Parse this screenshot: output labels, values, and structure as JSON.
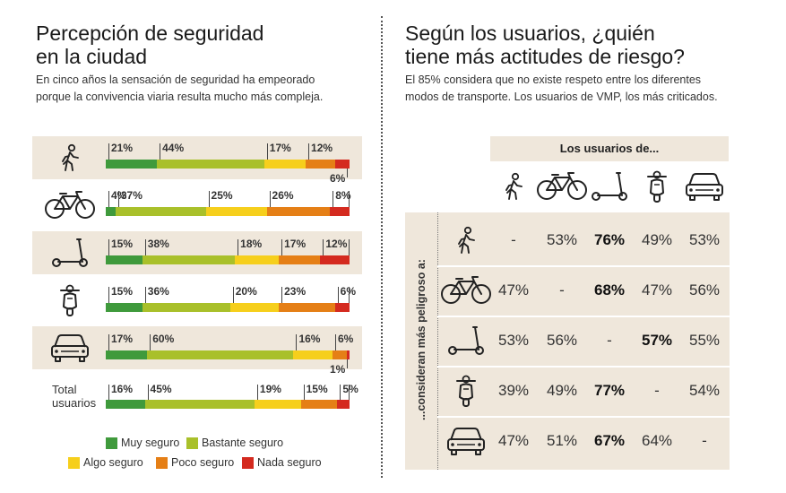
{
  "left": {
    "title_line1": "Percepción de seguridad",
    "title_line2": "en la ciudad",
    "subtitle_line1": "En cinco años la sensación de seguridad ha empeorado",
    "subtitle_line2": "porque la convivencia viaria resulta mucho más compleja."
  },
  "right": {
    "title_line1": "Según los usuarios, ¿quién",
    "title_line2": "tiene más actitudes de riesgo?",
    "subtitle_line1": "El 85% considera que no existe respeto entre los diferentes",
    "subtitle_line2": "modos de transporte. Los usuarios de VMP, los más criticados.",
    "header_label": "Los usuarios de...",
    "row_axis_label": "...consideran más peligroso a:"
  },
  "colors": {
    "muy_seguro": "#3f9a3c",
    "bastante_seguro": "#a9c02a",
    "algo_seguro": "#f6cf1c",
    "poco_seguro": "#e57f16",
    "nada_seguro": "#d42a1f",
    "band": "#efe7db"
  },
  "chart_data": [
    {
      "type": "bar",
      "stacked": true,
      "orientation": "horizontal",
      "title": "Percepción de seguridad en la ciudad",
      "categories": [
        "pedestrian-icon",
        "bicycle-icon",
        "scooter-icon",
        "motorbike-icon",
        "car-icon",
        "Total usuarios"
      ],
      "category_label_text": "Total usuarios",
      "series": [
        {
          "name": "Muy seguro",
          "color": "#3f9a3c",
          "values": [
            21,
            4,
            15,
            15,
            17,
            16
          ]
        },
        {
          "name": "Bastante seguro",
          "color": "#a9c02a",
          "values": [
            44,
            37,
            38,
            36,
            60,
            45
          ]
        },
        {
          "name": "Algo seguro",
          "color": "#f6cf1c",
          "values": [
            17,
            25,
            18,
            20,
            16,
            19
          ]
        },
        {
          "name": "Poco seguro",
          "color": "#e57f16",
          "values": [
            12,
            26,
            17,
            23,
            6,
            15
          ]
        },
        {
          "name": "Nada seguro",
          "color": "#d42a1f",
          "values": [
            6,
            8,
            12,
            6,
            1,
            5
          ]
        }
      ],
      "value_suffix": "%",
      "legend_position": "bottom",
      "legend": [
        {
          "label": "Muy seguro",
          "color": "#3f9a3c"
        },
        {
          "label": "Bastante seguro",
          "color": "#a9c02a"
        },
        {
          "label": "Algo seguro",
          "color": "#f6cf1c"
        },
        {
          "label": "Poco seguro",
          "color": "#e57f16"
        },
        {
          "label": "Nada seguro",
          "color": "#d42a1f"
        }
      ]
    },
    {
      "type": "table",
      "title": "Según los usuarios, ¿quién tiene más actitudes de riesgo?",
      "column_header": "Los usuarios de...",
      "columns": [
        "pedestrian-icon",
        "bicycle-icon",
        "scooter-icon",
        "motorbike-icon",
        "car-icon"
      ],
      "row_header": "...consideran más peligroso a:",
      "rows": [
        "pedestrian-icon",
        "bicycle-icon",
        "scooter-icon",
        "motorbike-icon",
        "car-icon"
      ],
      "cells": [
        [
          "-",
          "53%",
          "76%",
          "49%",
          "53%"
        ],
        [
          "47%",
          "-",
          "68%",
          "47%",
          "56%"
        ],
        [
          "53%",
          "56%",
          "-",
          "57%",
          "55%"
        ],
        [
          "39%",
          "49%",
          "77%",
          "-",
          "54%"
        ],
        [
          "47%",
          "51%",
          "67%",
          "64%",
          "-"
        ]
      ],
      "bold_cells": [
        [
          0,
          2
        ],
        [
          1,
          2
        ],
        [
          2,
          3
        ],
        [
          3,
          2
        ],
        [
          4,
          2
        ]
      ]
    }
  ]
}
